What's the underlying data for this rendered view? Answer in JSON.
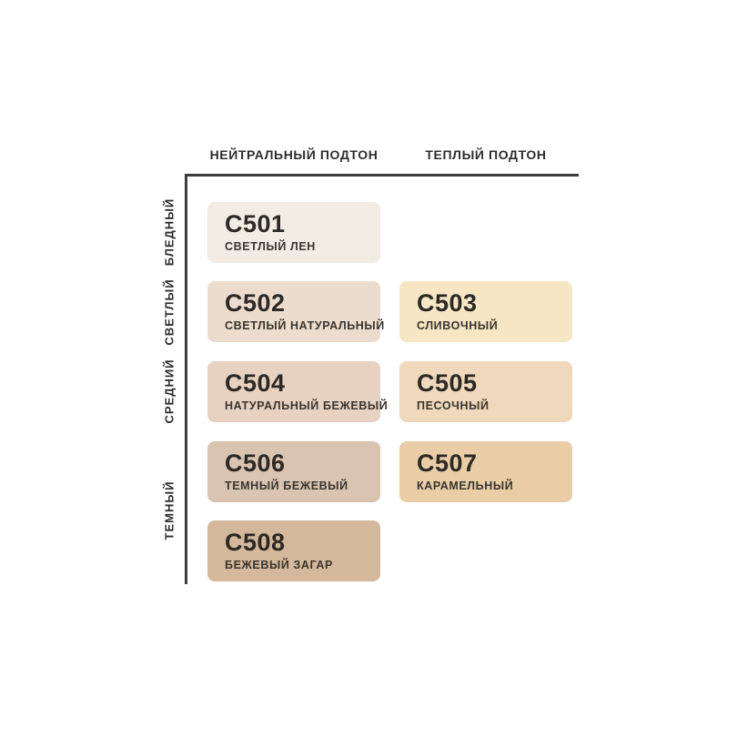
{
  "axes": {
    "column_headers": [
      "НЕЙТРАЛЬНЫЙ ПОДТОН",
      "ТЕПЛЫЙ ПОДТОН"
    ],
    "row_labels": [
      "БЛЕДНЫЙ",
      "СВЕТЛЫЙ",
      "СРЕДНИЙ",
      "ТЕМНЫЙ"
    ]
  },
  "swatches": [
    {
      "code": "C501",
      "name": "СВЕТЛЫЙ ЛЕН",
      "color": "#f2ece5",
      "column": "НЕЙТРАЛЬНЫЙ ПОДТОН",
      "row": "БЛЕДНЫЙ"
    },
    {
      "code": "C502",
      "name": "СВЕТЛЫЙ НАТУРАЛЬНЫЙ",
      "color": "#ecdccd",
      "column": "НЕЙТРАЛЬНЫЙ ПОДТОН",
      "row": "СВЕТЛЫЙ"
    },
    {
      "code": "C503",
      "name": "СЛИВОЧНЫЙ",
      "color": "#f7e6c4",
      "column": "ТЕПЛЫЙ ПОДТОН",
      "row": "СВЕТЛЫЙ"
    },
    {
      "code": "C504",
      "name": "НАТУРАЛЬНЫЙ БЕЖЕВЫЙ",
      "color": "#e7d1c1",
      "column": "НЕЙТРАЛЬНЫЙ ПОДТОН",
      "row": "СРЕДНИЙ"
    },
    {
      "code": "C505",
      "name": "ПЕСОЧНЫЙ",
      "color": "#efd8bb",
      "column": "ТЕПЛЫЙ ПОДТОН",
      "row": "СРЕДНИЙ"
    },
    {
      "code": "C506",
      "name": "ТЕМНЫЙ БЕЖЕВЫЙ",
      "color": "#d9c3b1",
      "column": "НЕЙТРАЛЬНЫЙ ПОДТОН",
      "row": "ТЕМНЫЙ"
    },
    {
      "code": "C507",
      "name": "КАРАМЕЛЬНЫЙ",
      "color": "#e8cda7",
      "column": "ТЕПЛЫЙ ПОДТОН",
      "row": "ТЕМНЫЙ"
    },
    {
      "code": "C508",
      "name": "БЕЖЕВЫЙ ЗАГАР",
      "color": "#d3b89b",
      "column": "НЕЙТРАЛЬНЫЙ ПОДТОН",
      "row": "ТЕМНЫЙ"
    }
  ],
  "colors": {
    "background": "#ffffff",
    "axis_line": "#3d3d3d",
    "header_text": "#2d2d2d",
    "card_text": "#2c2824"
  }
}
